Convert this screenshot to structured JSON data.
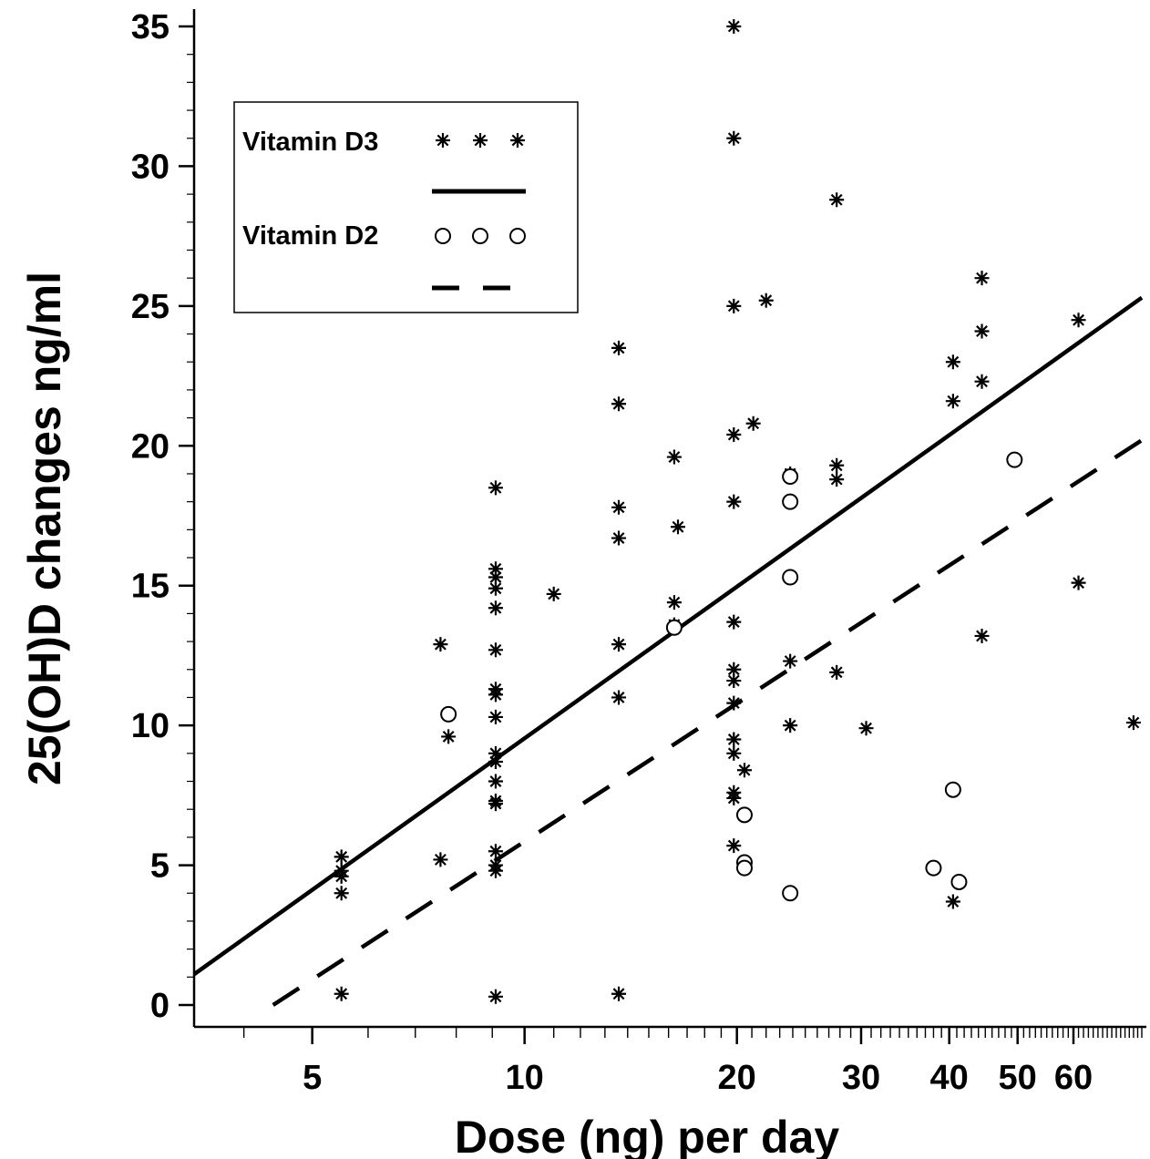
{
  "chart_data": {
    "type": "scatter",
    "xlabel": "Dose (ng) per day",
    "ylabel": "25(OH)D  changes  ng/ml",
    "x_scale": "log",
    "xlim": [
      3.4,
      75
    ],
    "ylim": [
      0,
      35
    ],
    "x_ticks": [
      5,
      10,
      20,
      30,
      40,
      50,
      60
    ],
    "y_ticks": [
      0,
      5,
      10,
      15,
      20,
      25,
      30,
      35
    ],
    "grid": false,
    "legend_position": "top-left",
    "legend": [
      {
        "label": "Vitamin D3",
        "marker": "asterisk",
        "marker_glyphs": "* * *",
        "line": "solid"
      },
      {
        "label": "Vitamin D2",
        "marker": "open-circle",
        "marker_glyphs": "o o o",
        "line": "dashed"
      }
    ],
    "series": [
      {
        "name": "Vitamin D3",
        "marker": "asterisk",
        "points": [
          [
            5.5,
            0.4
          ],
          [
            5.5,
            4.0
          ],
          [
            5.5,
            4.6
          ],
          [
            5.5,
            4.8
          ],
          [
            5.5,
            5.3
          ],
          [
            7.6,
            12.9
          ],
          [
            7.6,
            5.2
          ],
          [
            7.8,
            9.6
          ],
          [
            9.1,
            18.5
          ],
          [
            9.1,
            15.6
          ],
          [
            9.1,
            15.3
          ],
          [
            9.1,
            14.9
          ],
          [
            9.1,
            14.2
          ],
          [
            9.1,
            12.7
          ],
          [
            9.1,
            11.3
          ],
          [
            9.1,
            11.1
          ],
          [
            9.1,
            10.3
          ],
          [
            9.1,
            9.0
          ],
          [
            9.1,
            8.7
          ],
          [
            9.1,
            8.0
          ],
          [
            9.1,
            7.3
          ],
          [
            9.1,
            7.2
          ],
          [
            9.1,
            5.5
          ],
          [
            9.1,
            5.0
          ],
          [
            9.1,
            4.8
          ],
          [
            9.1,
            0.3
          ],
          [
            11.0,
            14.7
          ],
          [
            13.6,
            23.5
          ],
          [
            13.6,
            21.5
          ],
          [
            13.6,
            17.8
          ],
          [
            13.6,
            16.7
          ],
          [
            13.6,
            12.9
          ],
          [
            13.6,
            11.0
          ],
          [
            13.6,
            0.4
          ],
          [
            16.3,
            19.6
          ],
          [
            16.5,
            17.1
          ],
          [
            16.3,
            14.4
          ],
          [
            16.3,
            13.6
          ],
          [
            19.8,
            35.0
          ],
          [
            19.8,
            31.0
          ],
          [
            19.8,
            25.0
          ],
          [
            19.8,
            20.4
          ],
          [
            19.8,
            18.0
          ],
          [
            19.8,
            13.7
          ],
          [
            19.8,
            12.0
          ],
          [
            19.8,
            11.6
          ],
          [
            19.8,
            10.8
          ],
          [
            19.8,
            9.5
          ],
          [
            19.8,
            9.0
          ],
          [
            19.8,
            7.6
          ],
          [
            19.8,
            7.4
          ],
          [
            19.8,
            5.7
          ],
          [
            20.5,
            8.4
          ],
          [
            21.1,
            20.8
          ],
          [
            22.0,
            25.2
          ],
          [
            23.8,
            19.0
          ],
          [
            23.8,
            12.3
          ],
          [
            23.8,
            10.0
          ],
          [
            27.7,
            28.8
          ],
          [
            27.7,
            19.3
          ],
          [
            27.7,
            18.8
          ],
          [
            27.7,
            11.9
          ],
          [
            30.5,
            9.9
          ],
          [
            40.5,
            23.0
          ],
          [
            40.5,
            21.6
          ],
          [
            40.5,
            3.7
          ],
          [
            44.5,
            26.0
          ],
          [
            44.5,
            24.1
          ],
          [
            44.5,
            22.3
          ],
          [
            44.5,
            13.2
          ],
          [
            61.0,
            24.5
          ],
          [
            61.0,
            15.1
          ],
          [
            73.0,
            10.1
          ]
        ]
      },
      {
        "name": "Vitamin D2",
        "marker": "open-circle",
        "points": [
          [
            7.8,
            10.4
          ],
          [
            16.3,
            13.5
          ],
          [
            20.5,
            6.8
          ],
          [
            20.5,
            5.1
          ],
          [
            20.5,
            4.9
          ],
          [
            23.8,
            18.9
          ],
          [
            23.8,
            18.0
          ],
          [
            23.8,
            15.3
          ],
          [
            23.8,
            4.0
          ],
          [
            38.0,
            4.9
          ],
          [
            40.5,
            7.7
          ],
          [
            41.3,
            4.4
          ],
          [
            49.5,
            19.5
          ]
        ]
      }
    ],
    "fit_lines": [
      {
        "name": "Vitamin D3",
        "style": "solid",
        "points": [
          [
            3.4,
            1.1
          ],
          [
            75,
            25.3
          ]
        ]
      },
      {
        "name": "Vitamin D2",
        "style": "dashed",
        "points": [
          [
            4.4,
            0.0
          ],
          [
            75,
            20.2
          ]
        ]
      }
    ]
  }
}
